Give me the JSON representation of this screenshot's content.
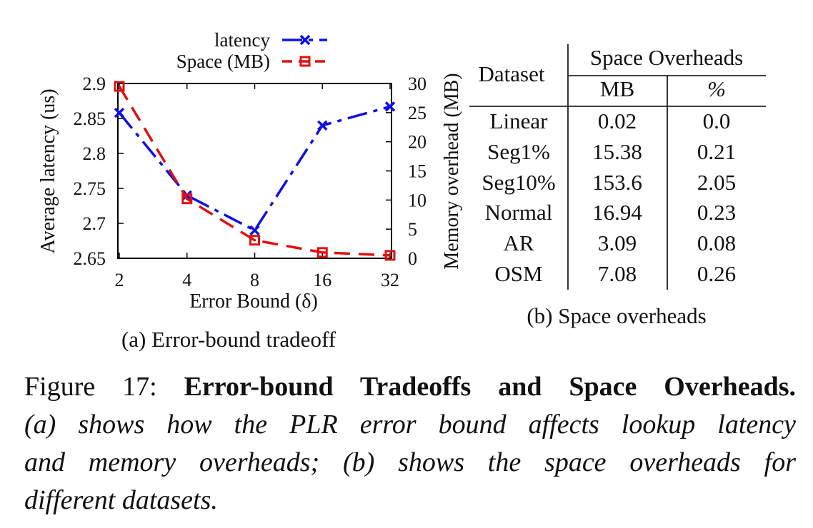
{
  "figure": {
    "caption_label": "Figure 17:",
    "caption_title": "Error-bound Tradeoffs and Space Overheads.",
    "caption_lines": [
      "(a) shows how the PLR error bound affects lookup latency",
      "and memory overheads; (b) shows the space overheads for",
      "different datasets."
    ],
    "subcaption_a": "(a) Error-bound tradeoff",
    "subcaption_b": "(b) Space overheads"
  },
  "chart_data": [
    {
      "type": "line",
      "title": "",
      "xlabel": "Error Bound (δ)",
      "ylabel": "Average latency (us)",
      "y2label": "Memory overhead (MB)",
      "categories": [
        "2",
        "4",
        "8",
        "16",
        "32"
      ],
      "ylim": [
        2.65,
        2.9
      ],
      "y2lim": [
        0,
        30
      ],
      "yticks": [
        "2.65",
        "2.7",
        "2.75",
        "2.8",
        "2.85",
        "2.9"
      ],
      "y2ticks": [
        "0",
        "5",
        "10",
        "15",
        "20",
        "25",
        "30"
      ],
      "legend_position": "top",
      "grid": false,
      "series": [
        {
          "name": "latency",
          "axis": "left",
          "color": "#1010e0",
          "marker": "x",
          "values": [
            2.858,
            2.74,
            2.69,
            2.84,
            2.867
          ]
        },
        {
          "name": "Space (MB)",
          "axis": "right",
          "color": "#e01010",
          "marker": "square",
          "values": [
            29.5,
            10.2,
            3.1,
            1.0,
            0.5
          ]
        }
      ]
    },
    {
      "type": "table",
      "header": {
        "dataset": "Dataset",
        "group": "Space Overheads",
        "mb": "MB",
        "pct": "%"
      },
      "rows": [
        [
          "Linear",
          "0.02",
          "0.0"
        ],
        [
          "Seg1%",
          "15.38",
          "0.21"
        ],
        [
          "Seg10%",
          "153.6",
          "2.05"
        ],
        [
          "Normal",
          "16.94",
          "0.23"
        ],
        [
          "AR",
          "3.09",
          "0.08"
        ],
        [
          "OSM",
          "7.08",
          "0.26"
        ]
      ]
    }
  ]
}
